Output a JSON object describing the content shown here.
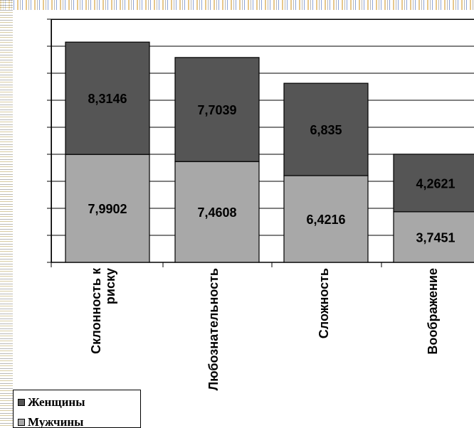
{
  "chart_data": {
    "type": "bar",
    "stacked": true,
    "categories": [
      "Склонность к\nриску",
      "Любознательность",
      "Сложность",
      "Воображение"
    ],
    "series": [
      {
        "name": "Мужчины",
        "values": [
          7.9902,
          7.4608,
          6.4216,
          3.7451
        ],
        "labels": [
          "7,9902",
          "7,4608",
          "6,4216",
          "3,7451"
        ],
        "color": "#a8a8a8"
      },
      {
        "name": "Женщины",
        "values": [
          8.3146,
          7.7039,
          6.835,
          4.2621
        ],
        "labels": [
          "8,3146",
          "7,7039",
          "6,835",
          "4,2621"
        ],
        "color": "#555555"
      }
    ],
    "ylim": [
      0,
      18
    ],
    "grid": true,
    "legend_position": "bottom-left"
  },
  "legend": {
    "items": [
      {
        "label": "Женщины",
        "color": "#555555"
      },
      {
        "label": "Мужчины",
        "color": "#a8a8a8"
      }
    ]
  }
}
